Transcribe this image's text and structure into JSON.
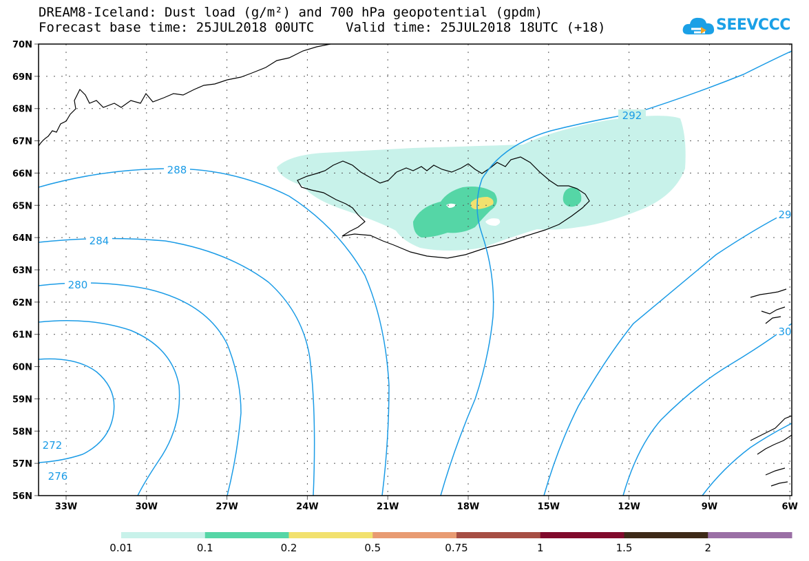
{
  "header": {
    "title_line1": "DREAM8-Iceland: Dust load (g/m²) and 700 hPa geopotential (gpdm)",
    "title_line2": "Forecast base time: 25JUL2018 00UTC    Valid time: 25JUL2018 18UTC (+18)",
    "logo_text": "SEEVCCC"
  },
  "map": {
    "lat_labels": [
      "70N",
      "69N",
      "68N",
      "67N",
      "66N",
      "65N",
      "64N",
      "63N",
      "62N",
      "61N",
      "60N",
      "59N",
      "58N",
      "57N",
      "56N"
    ],
    "lon_labels": [
      "33W",
      "30W",
      "27W",
      "24W",
      "21W",
      "18W",
      "15W",
      "12W",
      "9W",
      "6W"
    ],
    "contour_labels": [
      "288",
      "292",
      "284",
      "280",
      "272",
      "276",
      "29",
      "30"
    ],
    "contour_color": "#1a9be6",
    "coastline_color": "#000000"
  },
  "legend": {
    "ticks": [
      "0.01",
      "0.1",
      "0.2",
      "0.5",
      "0.75",
      "1",
      "1.5",
      "2"
    ],
    "colors": [
      "#c8f2ea",
      "#55d6a6",
      "#f2e16e",
      "#e89b72",
      "#a64e44",
      "#800a2c",
      "#3e2a18",
      "#9a6fa5"
    ]
  }
}
